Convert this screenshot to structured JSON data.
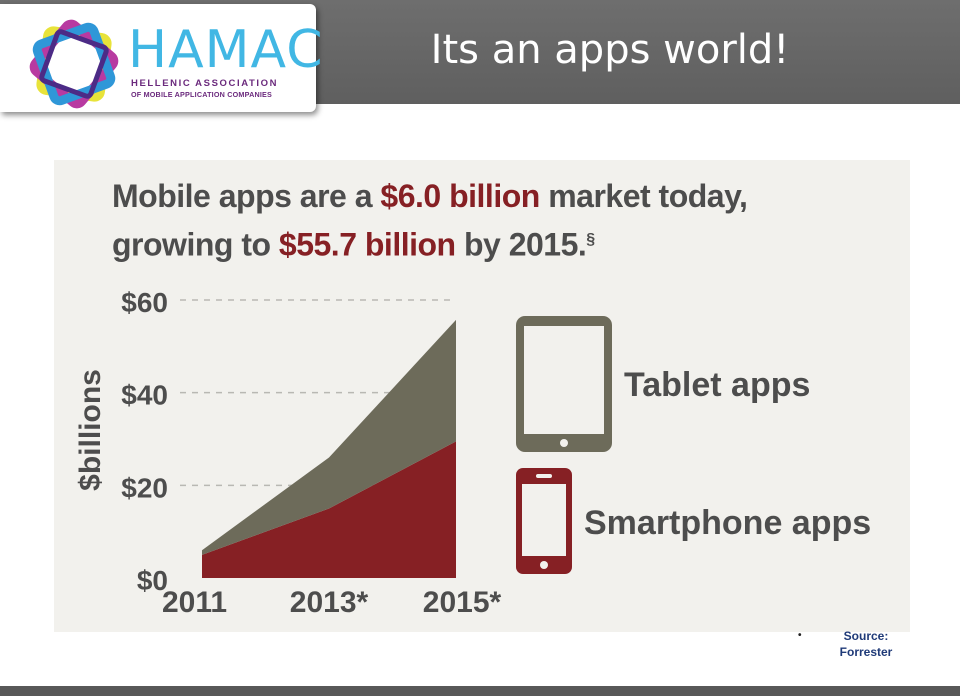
{
  "slide": {
    "title": "Its an apps world!",
    "source_label": "Source:",
    "source_name": "Forrester",
    "bullet": "•"
  },
  "logo": {
    "name": "HAMAC",
    "line1": "HELLENIC ASSOCIATION",
    "line2": "OF MOBILE APPLICATION COMPANIES"
  },
  "headline": {
    "line1_prefix": "Mobile apps are a ",
    "line1_highlight": "$6.0 billion",
    "line1_suffix": " market today,",
    "line2_prefix": "growing to ",
    "line2_highlight": "$55.7 billion",
    "line2_suffix": " by 2015.",
    "footnote_mark": "§"
  },
  "colors": {
    "tablet": "#6d6b5a",
    "smartphone": "#862024",
    "headline_highlight": "#862024",
    "headline_text": "#4d4d4d",
    "panel_background": "#f2f1ed"
  },
  "chart_data": {
    "type": "area",
    "stacked": true,
    "x": [
      "2011",
      "2013*",
      "2015*"
    ],
    "series": [
      {
        "name": "Smartphone apps",
        "icon": "smartphone-icon",
        "color": "#862024",
        "values": [
          5.0,
          15.0,
          29.5
        ]
      },
      {
        "name": "Tablet apps",
        "icon": "tablet-icon",
        "color": "#6d6b5a",
        "values": [
          1.0,
          11.0,
          26.2
        ]
      }
    ],
    "ylabel": "$billions",
    "yticks": [
      "$0",
      "$20",
      "$40",
      "$60"
    ],
    "ytick_values": [
      0,
      20,
      40,
      60
    ],
    "ylim": [
      0,
      60
    ],
    "grid": true,
    "legend_position": "right"
  }
}
